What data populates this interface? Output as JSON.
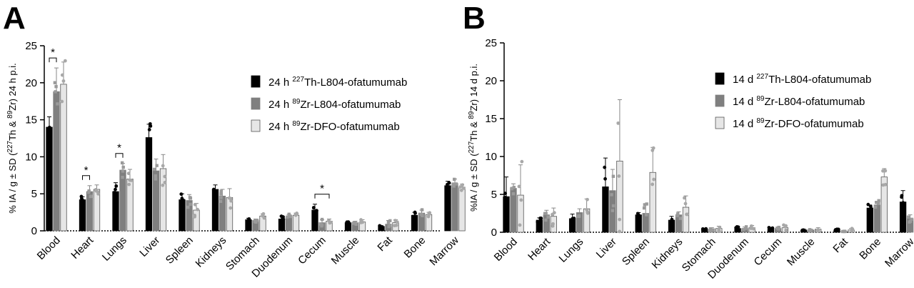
{
  "chart_data": [
    {
      "type": "bar",
      "panel": "A",
      "ylabel": "% IA / g ± SD (227Th & 89Zr) 24 h p.i.",
      "ylabel_parts": {
        "pre": "% IA / g ± SD (",
        "sup1": "227",
        "mid1": "Th & ",
        "sup2": "89",
        "mid2": "Zr) 24 h p.i."
      },
      "ylim": [
        0,
        25
      ],
      "yticks": [
        "0",
        "5",
        "10",
        "15",
        "20",
        "25"
      ],
      "categories": [
        "Blood",
        "Heart",
        "Lungs",
        "Liver",
        "Spleen",
        "Kidneys",
        "Stomach",
        "Duodenum",
        "Cecum",
        "Muscle",
        "Fat",
        "Bone",
        "Marrow"
      ],
      "series": [
        {
          "name": "24 h 227Th-L804-ofatumumab",
          "legend_parts": {
            "pre": "24 h ",
            "sup": "227",
            "post": "Th-L804-ofatumumab"
          },
          "color": "#000000",
          "values": [
            14.0,
            4.2,
            5.3,
            12.6,
            4.2,
            5.6,
            1.5,
            1.6,
            2.8,
            1.1,
            0.6,
            2.1,
            6.1
          ],
          "errors": [
            1.4,
            0.4,
            1.2,
            1.8,
            0.8,
            0.6,
            0.2,
            0.4,
            0.8,
            0.1,
            0.1,
            0.4,
            0.6
          ]
        },
        {
          "name": "24 h 89Zr-L804-ofatumumab",
          "legend_parts": {
            "pre": "24 h ",
            "sup": "89",
            "post": "Zr-L804-ofatumumab"
          },
          "color": "#7f7f7f",
          "values": [
            18.8,
            5.3,
            8.2,
            8.1,
            4.1,
            4.7,
            1.4,
            1.9,
            1.1,
            1.1,
            0.9,
            2.4,
            6.4
          ],
          "errors": [
            3.2,
            0.8,
            0.9,
            1.6,
            0.8,
            0.9,
            0.2,
            0.3,
            0.4,
            0.2,
            0.5,
            0.4,
            0.6
          ]
        },
        {
          "name": "24 h 89Zr-DFO-ofatumumab",
          "legend_parts": {
            "pre": "24 h ",
            "sup": "89",
            "post": "Zr-DFO-ofatumumab"
          },
          "color": "#e6e6e6",
          "values": [
            19.8,
            5.6,
            7.0,
            8.4,
            2.8,
            4.5,
            2.0,
            2.1,
            1.3,
            1.2,
            1.1,
            2.2,
            5.9
          ],
          "errors": [
            3.0,
            0.6,
            1.3,
            1.9,
            0.9,
            1.2,
            0.3,
            0.3,
            0.3,
            0.3,
            0.4,
            0.3,
            0.4
          ]
        }
      ],
      "significance": [
        {
          "category": "Blood",
          "series_pair": [
            0,
            1
          ],
          "label": "*"
        },
        {
          "category": "Heart",
          "series_pair": [
            0,
            1
          ],
          "label": "*"
        },
        {
          "category": "Lungs",
          "series_pair": [
            0,
            1
          ],
          "label": "*"
        },
        {
          "category": "Cecum",
          "series_pair": [
            0,
            2
          ],
          "label": "*"
        }
      ],
      "legend_position": "right"
    },
    {
      "type": "bar",
      "panel": "B",
      "ylabel": "%IA / g ± SD (227Th & 89Zr) 14 d p.i.",
      "ylabel_parts": {
        "pre": "%IA / g ± SD (",
        "sup1": "227",
        "mid1": "Th & ",
        "sup2": "89",
        "mid2": "Zr) 14 d p.i."
      },
      "ylim": [
        0,
        25
      ],
      "yticks": [
        "0",
        "5",
        "10",
        "15",
        "20",
        "25"
      ],
      "categories": [
        "Blood",
        "Heart",
        "Lungs",
        "Liver",
        "Spleen",
        "Kidneys",
        "Stomach",
        "Duodenum",
        "Cecum",
        "Muscle",
        "Fat",
        "Bone",
        "Marrow"
      ],
      "series": [
        {
          "name": "14 d 227Th-L804-ofatumumab",
          "legend_parts": {
            "pre": "14 d ",
            "sup": "227",
            "post": "Th-L804-ofatumumab"
          },
          "color": "#000000",
          "values": [
            4.7,
            1.6,
            1.8,
            6.0,
            2.3,
            1.6,
            0.4,
            0.5,
            0.4,
            0.3,
            0.3,
            3.2,
            4.0
          ],
          "errors": [
            2.6,
            0.3,
            0.6,
            3.8,
            0.3,
            0.5,
            0.1,
            0.2,
            0.2,
            0.1,
            0.1,
            0.4,
            1.5
          ]
        },
        {
          "name": "14 d 89Zr-L804-ofatumumab",
          "legend_parts": {
            "pre": "14 d ",
            "sup": "89",
            "post": "Zr-L804-ofatumumab"
          },
          "color": "#7f7f7f",
          "values": [
            5.8,
            2.3,
            2.6,
            5.5,
            2.5,
            2.3,
            0.4,
            0.5,
            0.5,
            0.3,
            0.1,
            3.6,
            1.8
          ],
          "errors": [
            0.6,
            0.6,
            0.5,
            2.8,
            1.1,
            0.4,
            0.2,
            0.2,
            0.2,
            0.1,
            0.1,
            0.5,
            0.5
          ]
        },
        {
          "name": "14 d 89Zr-DFO-ofatumumab",
          "legend_parts": {
            "pre": "14 d ",
            "sup": "89",
            "post": "Zr-DFO-ofatumumab"
          },
          "color": "#e6e6e6",
          "values": [
            4.9,
            2.1,
            3.1,
            9.4,
            7.9,
            3.3,
            0.5,
            0.6,
            0.6,
            0.4,
            0.3,
            7.3,
            2.7
          ],
          "errors": [
            4.0,
            1.1,
            1.3,
            8.1,
            3.3,
            1.5,
            0.3,
            0.3,
            0.3,
            0.2,
            0.2,
            1.1,
            1.4
          ]
        }
      ],
      "legend_position": "right"
    }
  ]
}
